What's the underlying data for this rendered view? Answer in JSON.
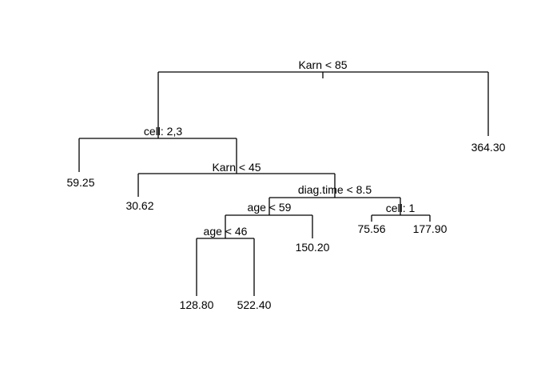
{
  "tree": {
    "nodes": {
      "root": {
        "split": "Karn < 85"
      },
      "n2": {
        "split": "cell: 2,3"
      },
      "n5": {
        "split": "Karn < 45"
      },
      "n11": {
        "split": "diag.time < 8.5"
      },
      "n22": {
        "split": "age < 59"
      },
      "n44": {
        "split": "age < 46"
      },
      "n23": {
        "split": "cell: 1"
      },
      "leaf3": {
        "value": "364.30"
      },
      "leaf4": {
        "value": "59.25"
      },
      "leaf10": {
        "value": "30.62"
      },
      "leaf45": {
        "value": "150.20"
      },
      "leaf88": {
        "value": "128.80"
      },
      "leaf89": {
        "value": "522.40"
      },
      "leaf46": {
        "value": "75.56"
      },
      "leaf47": {
        "value": "177.90"
      }
    }
  }
}
